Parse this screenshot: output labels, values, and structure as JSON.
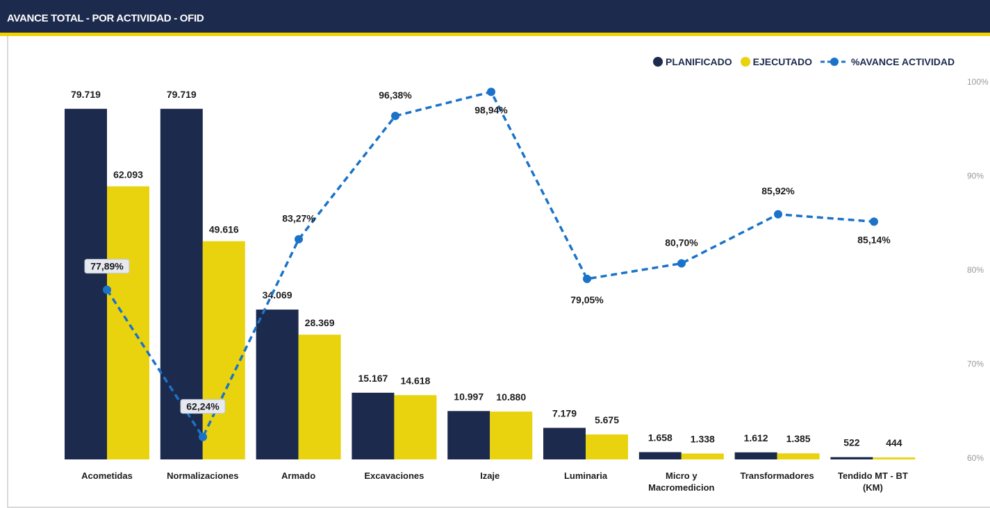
{
  "header": {
    "title": "AVANCE TOTAL - POR ACTIVIDAD - OFID"
  },
  "legend": {
    "planned_label": "PLANIFICADO",
    "executed_label": "EJECUTADO",
    "progress_label": "%AVANCE ACTIVIDAD"
  },
  "colors": {
    "planned": "#1c2a4d",
    "executed": "#e9d30f",
    "progress": "#1a73c9",
    "header_bg": "#1c2a4d",
    "header_border": "#f0d400"
  },
  "chart_data": {
    "type": "bar",
    "title": "AVANCE TOTAL - POR ACTIVIDAD - OFID",
    "categories": [
      [
        "Acometidas"
      ],
      [
        "Normalizaciones"
      ],
      [
        "Armado"
      ],
      [
        "Excavaciones"
      ],
      [
        "Izaje"
      ],
      [
        "Luminaria"
      ],
      [
        "Micro y",
        "Macromedicion"
      ],
      [
        "Transformadores"
      ],
      [
        "Tendido MT - BT",
        "(KM)"
      ]
    ],
    "series": [
      {
        "name": "PLANIFICADO",
        "values": [
          79719,
          79719,
          34069,
          15167,
          10997,
          7179,
          1658,
          1612,
          522
        ],
        "labels": [
          "79.719",
          "79.719",
          "34.069",
          "15.167",
          "10.997",
          "7.179",
          "1.658",
          "1.612",
          "522"
        ]
      },
      {
        "name": "EJECUTADO",
        "values": [
          62093,
          49616,
          28369,
          14618,
          10880,
          5675,
          1338,
          1385,
          444
        ],
        "labels": [
          "62.093",
          "49.616",
          "28.369",
          "14.618",
          "10.880",
          "5.675",
          "1.338",
          "1.385",
          "444"
        ]
      },
      {
        "name": "%AVANCE ACTIVIDAD",
        "type": "line",
        "axis": "secondary",
        "values": [
          77.89,
          62.24,
          83.27,
          96.38,
          98.94,
          79.05,
          80.7,
          85.92,
          85.14
        ],
        "labels": [
          "77,89%",
          "62,24%",
          "83,27%",
          "96,38%",
          "98,94%",
          "79,05%",
          "80,70%",
          "85,92%",
          "85,14%"
        ]
      }
    ],
    "ylim": [
      0,
      80000
    ],
    "y2lim": [
      60,
      100
    ],
    "y2_ticks": [
      "60%",
      "70%",
      "80%",
      "90%",
      "100%"
    ],
    "legend_position": "top-right",
    "grid": false
  }
}
